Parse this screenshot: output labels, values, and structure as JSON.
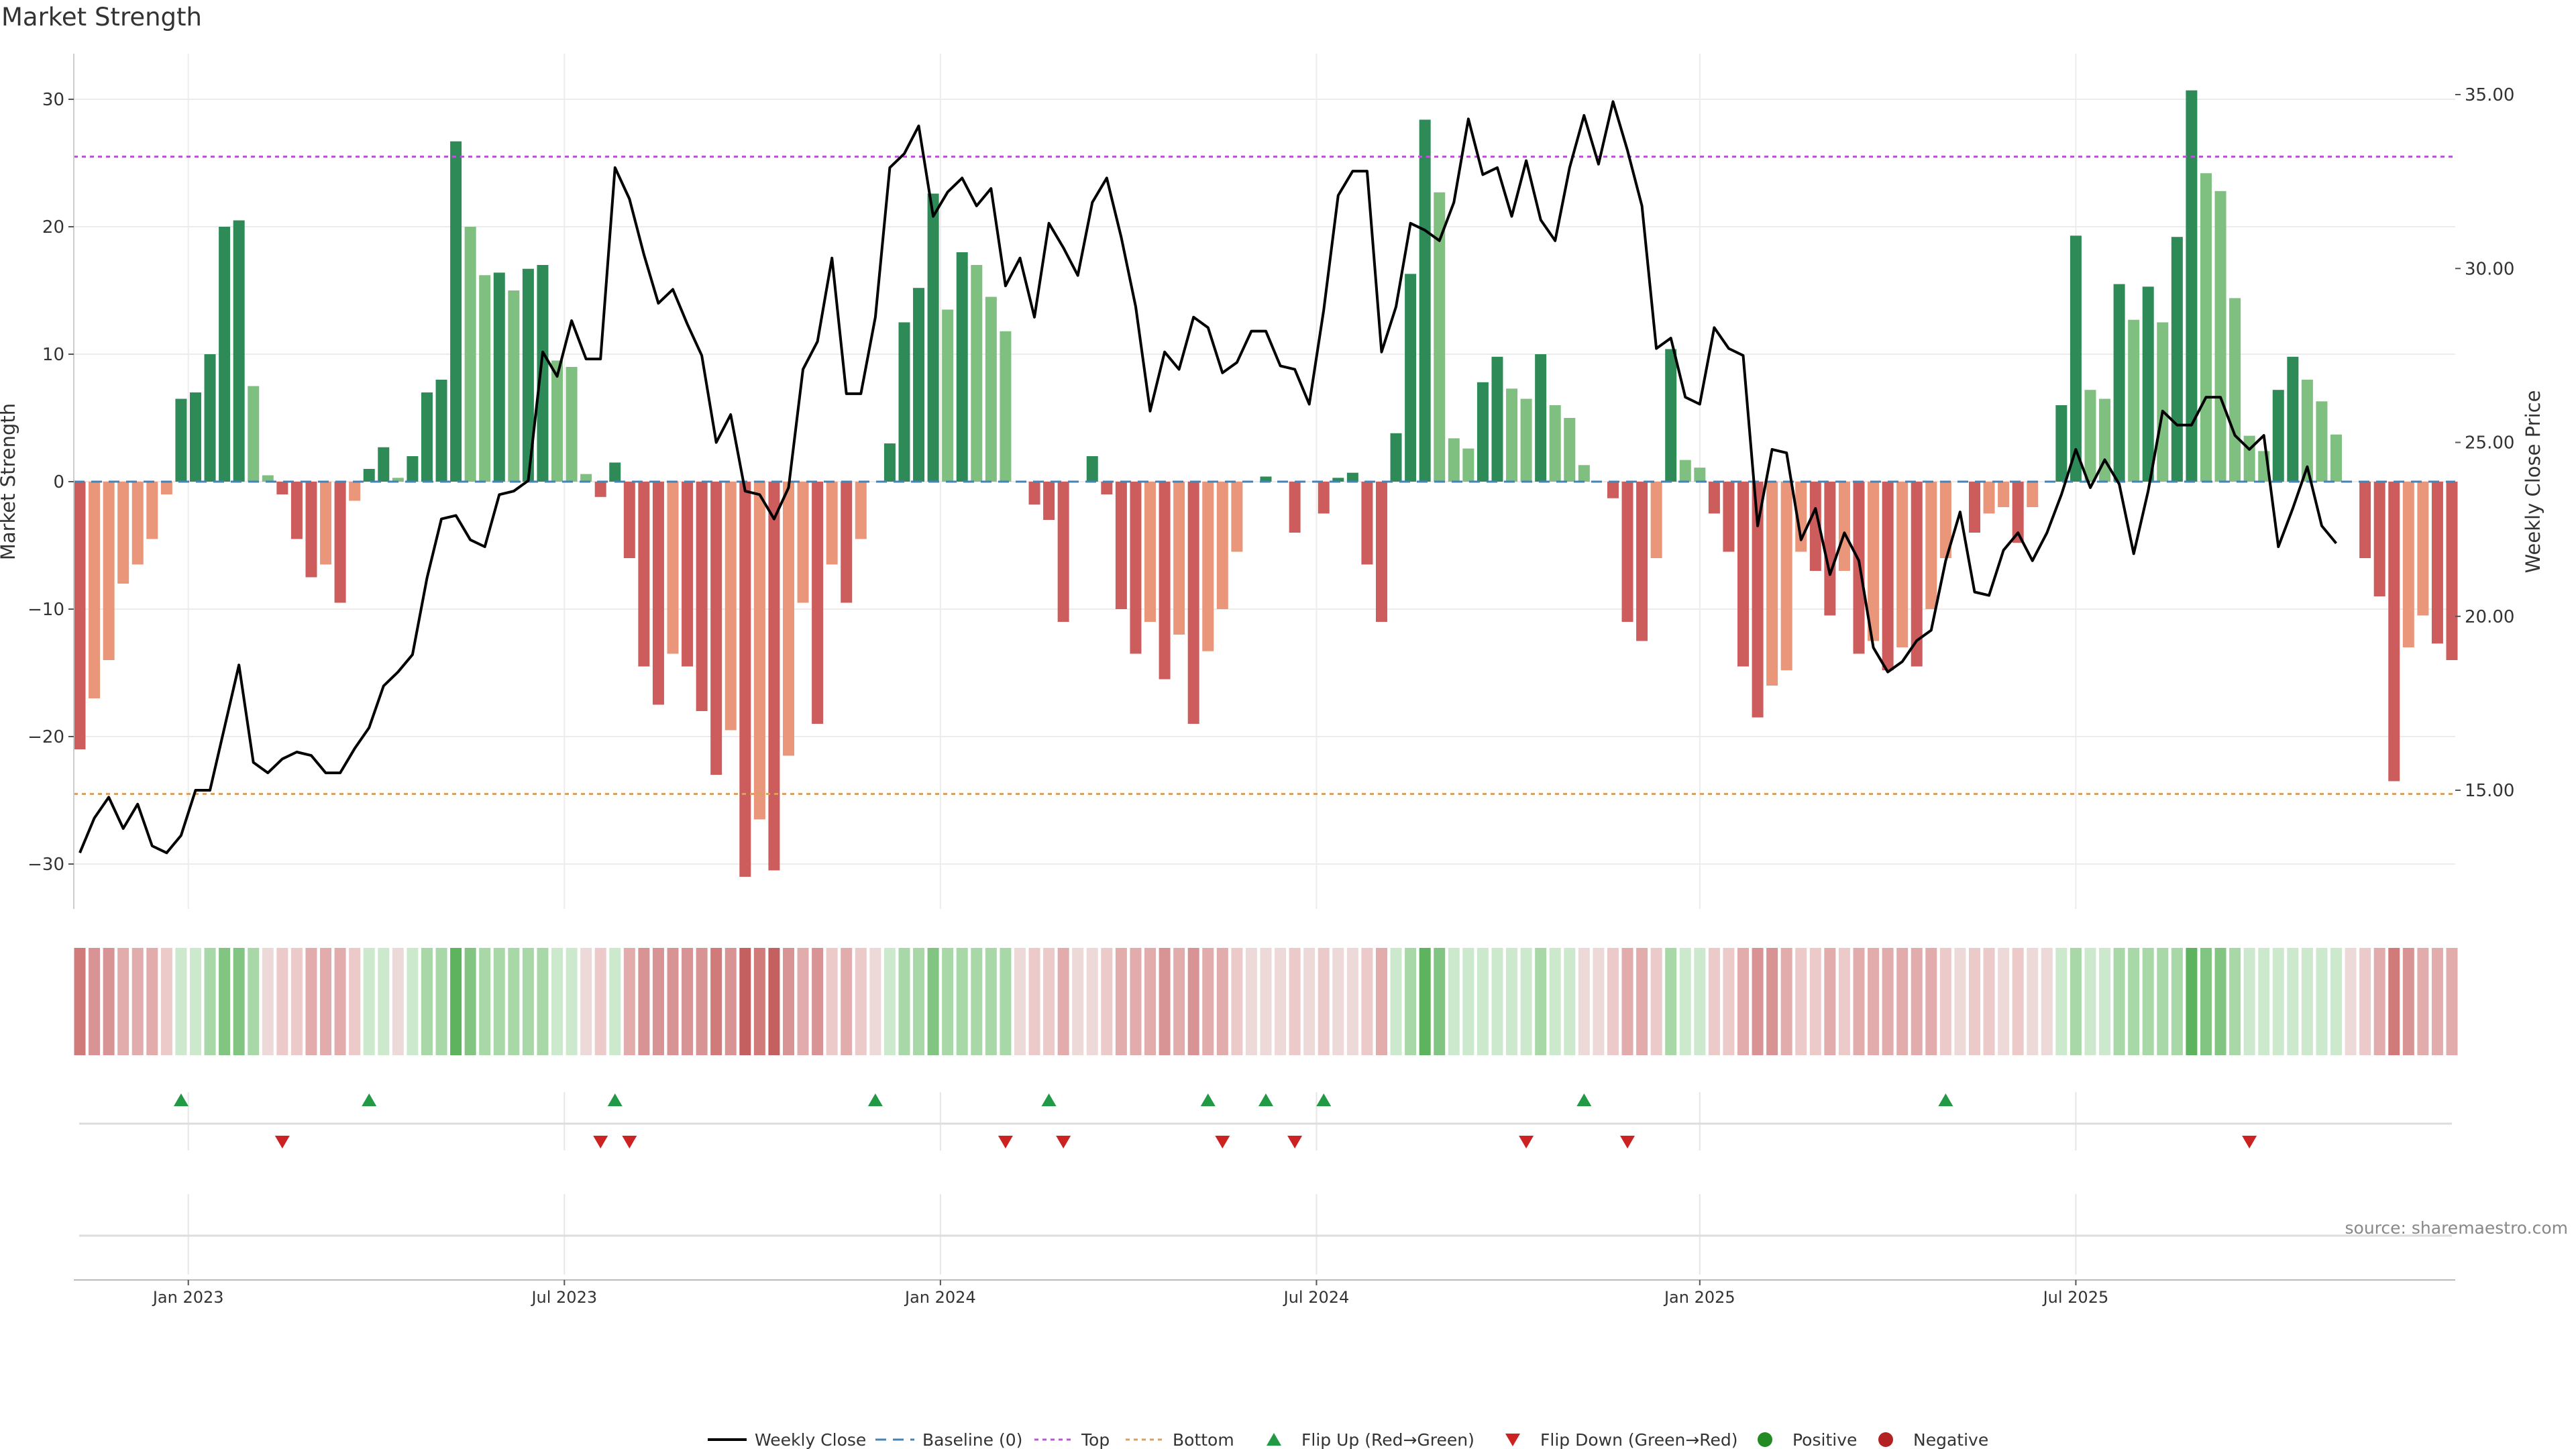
{
  "title": "Market Strength",
  "source": "source: sharemaestro.com",
  "chart_data": {
    "type": "bar",
    "title": "Market Strength",
    "ylabel": "Market Strength",
    "y2label": "Weekly Close Price",
    "ylim": [
      -33,
      34
    ],
    "y2lim": [
      12.2,
      35.6
    ],
    "y_ticks": [
      -30,
      -20,
      -10,
      0,
      10,
      20,
      30
    ],
    "y_tick_labels": [
      "−30",
      "−20",
      "−10",
      "0",
      "10",
      "20",
      "30"
    ],
    "y2_ticks": [
      15,
      20,
      25,
      30,
      35
    ],
    "y2_tick_labels": [
      "15.00",
      "20.00",
      "25.00",
      "30.00",
      "35.00"
    ],
    "x_tick_labels": [
      "Jan 2023",
      "Jul 2023",
      "Jan 2024",
      "Jul 2024",
      "Jan 2025",
      "Jul 2025"
    ],
    "x_tick_weeks": [
      7.5,
      33.5,
      59.5,
      85.5,
      112,
      138
    ],
    "top_level": 25.5,
    "bottom_level": -24.5,
    "strength": [
      -21,
      -17,
      -14,
      -8,
      -6.5,
      -4.5,
      -1,
      6.5,
      7,
      10,
      20,
      20.5,
      7.5,
      0.5,
      -1,
      -4.5,
      -7.5,
      -6.5,
      -9.5,
      -1.5,
      1,
      2.7,
      0.3,
      2,
      7,
      8,
      26.7,
      20,
      16.2,
      16.4,
      15,
      16.7,
      17,
      9.5,
      9,
      0.6,
      -1.2,
      1.5,
      -6,
      -14.5,
      -17.5,
      -13.5,
      -14.5,
      -18,
      -23,
      -19.5,
      -31,
      -26.5,
      -30.5,
      -21.5,
      -9.5,
      -19,
      -6.5,
      -9.5,
      -4.5,
      0,
      3,
      12.5,
      15.2,
      22.6,
      13.5,
      18,
      17,
      14.5,
      11.8,
      0,
      -1.8,
      -3,
      -11,
      0,
      2,
      -1,
      -10,
      -13.5,
      -11,
      -15.5,
      -12,
      -19,
      -13.3,
      -10,
      -5.5,
      0,
      0.4,
      0,
      -4,
      0,
      -2.5,
      0.3,
      0.7,
      -6.5,
      -11,
      3.8,
      16.3,
      28.4,
      22.7,
      3.4,
      2.6,
      7.8,
      9.8,
      7.3,
      6.5,
      10,
      6,
      5,
      1.3,
      0,
      -1.3,
      -11,
      -12.5,
      -6,
      10.4,
      1.7,
      1.1,
      -2.5,
      -5.5,
      -14.5,
      -18.5,
      -16,
      -14.8,
      -5.5,
      -7,
      -10.5,
      -7,
      -13.5,
      -12.5,
      -14.8,
      -13,
      -14.5,
      -10,
      -6,
      0,
      -4,
      -2.5,
      -2,
      -4.8,
      -2,
      0,
      6,
      19.3,
      7.2,
      6.5,
      15.5,
      12.7,
      15.3,
      12.5,
      19.2,
      30.7,
      24.2,
      22.8,
      14.4,
      3.6,
      2.4,
      7.2,
      9.8,
      8,
      6.3,
      3.7,
      0,
      -6,
      -9,
      -23.5,
      -13,
      -10.5,
      -12.7,
      -14
    ],
    "weekly_close": [
      13.2,
      14.2,
      14.8,
      13.9,
      14.6,
      13.4,
      13.2,
      13.7,
      15,
      15,
      16.8,
      18.6,
      15.8,
      15.5,
      15.9,
      16.1,
      16,
      15.5,
      15.5,
      16.2,
      16.8,
      18,
      18.4,
      18.9,
      21.1,
      22.8,
      22.9,
      22.2,
      22,
      23.5,
      23.6,
      23.9,
      27.6,
      26.9,
      28.5,
      27.4,
      27.4,
      32.9,
      32,
      30.4,
      29,
      29.4,
      28.4,
      27.5,
      25,
      25.8,
      23.6,
      23.5,
      22.8,
      23.7,
      27.1,
      27.9,
      30.3,
      26.4,
      26.4,
      28.6,
      32.9,
      33.3,
      34.1,
      31.5,
      32.2,
      32.6,
      31.8,
      32.3,
      29.5,
      30.3,
      28.6,
      31.3,
      30.6,
      29.8,
      31.9,
      32.6,
      30.9,
      28.9,
      25.9,
      27.6,
      27.1,
      28.6,
      28.3,
      27,
      27.3,
      28.2,
      28.2,
      27.2,
      27.1,
      26.1,
      28.8,
      32.1,
      32.8,
      32.8,
      27.6,
      28.9,
      31.3,
      31.1,
      30.8,
      31.9,
      34.3,
      32.7,
      32.9,
      31.5,
      33.1,
      31.4,
      30.8,
      32.9,
      34.4,
      33,
      34.8,
      33.4,
      31.8,
      27.7,
      28,
      26.3,
      26.1,
      28.3,
      27.7,
      27.5,
      22.6,
      24.8,
      24.7,
      22.2,
      23.1,
      21.2,
      22.4,
      21.6,
      19.1,
      18.4,
      18.7,
      19.3,
      19.6,
      21.6,
      23,
      20.7,
      20.6,
      21.9,
      22.4,
      21.6,
      22.4,
      23.5,
      24.8,
      23.7,
      24.5,
      23.8,
      21.8,
      23.6,
      25.9,
      25.5,
      25.5,
      26.3,
      26.3,
      25.2,
      24.8,
      25.2,
      22,
      23.1,
      24.3,
      22.6,
      22.1
    ],
    "flip_up_weeks": [
      7,
      20,
      37,
      55,
      67,
      78,
      82,
      86,
      104,
      129
    ],
    "flip_down_weeks": [
      14,
      36,
      38,
      64,
      68,
      79,
      84,
      100,
      107,
      150
    ],
    "strip_levels": [
      -4,
      -3,
      -3,
      -2,
      -2,
      -2,
      -1,
      1,
      1,
      2,
      3,
      3,
      2,
      0,
      -1,
      -1,
      -2,
      -2,
      -2,
      -1,
      1,
      1,
      0,
      1,
      2,
      2,
      4,
      3,
      2,
      2,
      2,
      2,
      2,
      1,
      1,
      0,
      -1,
      1,
      -2,
      -3,
      -3,
      -3,
      -3,
      -3,
      -4,
      -3,
      -5,
      -4,
      -5,
      -3,
      -2,
      -3,
      -1,
      -2,
      -1,
      0,
      1,
      2,
      2,
      3,
      2,
      2,
      2,
      2,
      2,
      0,
      -1,
      -1,
      -2,
      0,
      0,
      -1,
      -2,
      -2,
      -2,
      -3,
      -2,
      -3,
      -2,
      -2,
      -1,
      0,
      0,
      0,
      -1,
      0,
      -1,
      0,
      0,
      -1,
      -2,
      1,
      2,
      4,
      3,
      1,
      1,
      1,
      1,
      1,
      1,
      2,
      1,
      1,
      0,
      0,
      -1,
      -2,
      -2,
      -1,
      2,
      1,
      1,
      -1,
      -1,
      -2,
      -3,
      -3,
      -2,
      -1,
      -1,
      -2,
      -1,
      -2,
      -2,
      -2,
      -2,
      -2,
      -2,
      -1,
      0,
      -1,
      -1,
      0,
      -1,
      0,
      0,
      1,
      2,
      1,
      1,
      2,
      2,
      2,
      2,
      2,
      4,
      3,
      3,
      2,
      1,
      1,
      1,
      1,
      1,
      1,
      1,
      0,
      -1,
      -2,
      -4,
      -3,
      -2,
      -2,
      -2
    ],
    "legend": [
      "Weekly Close",
      "Baseline (0)",
      "Top",
      "Bottom",
      "Flip Up (Red→Green)",
      "Flip Down (Green→Red)",
      "Positive",
      "Negative"
    ]
  },
  "colors": {
    "pos_dark": "#2e8b57",
    "pos_light": "#7fbf7f",
    "neg_dark": "#cd5c5c",
    "neg_light": "#e9967a",
    "price_line": "#000000",
    "baseline": "#4682b4",
    "top_line": "#ba55d3",
    "bottom_line": "#daa060",
    "flip_up": "#229944",
    "flip_down": "#cc2222",
    "positive_dot": "#228b22",
    "negative_dot": "#b22222"
  }
}
